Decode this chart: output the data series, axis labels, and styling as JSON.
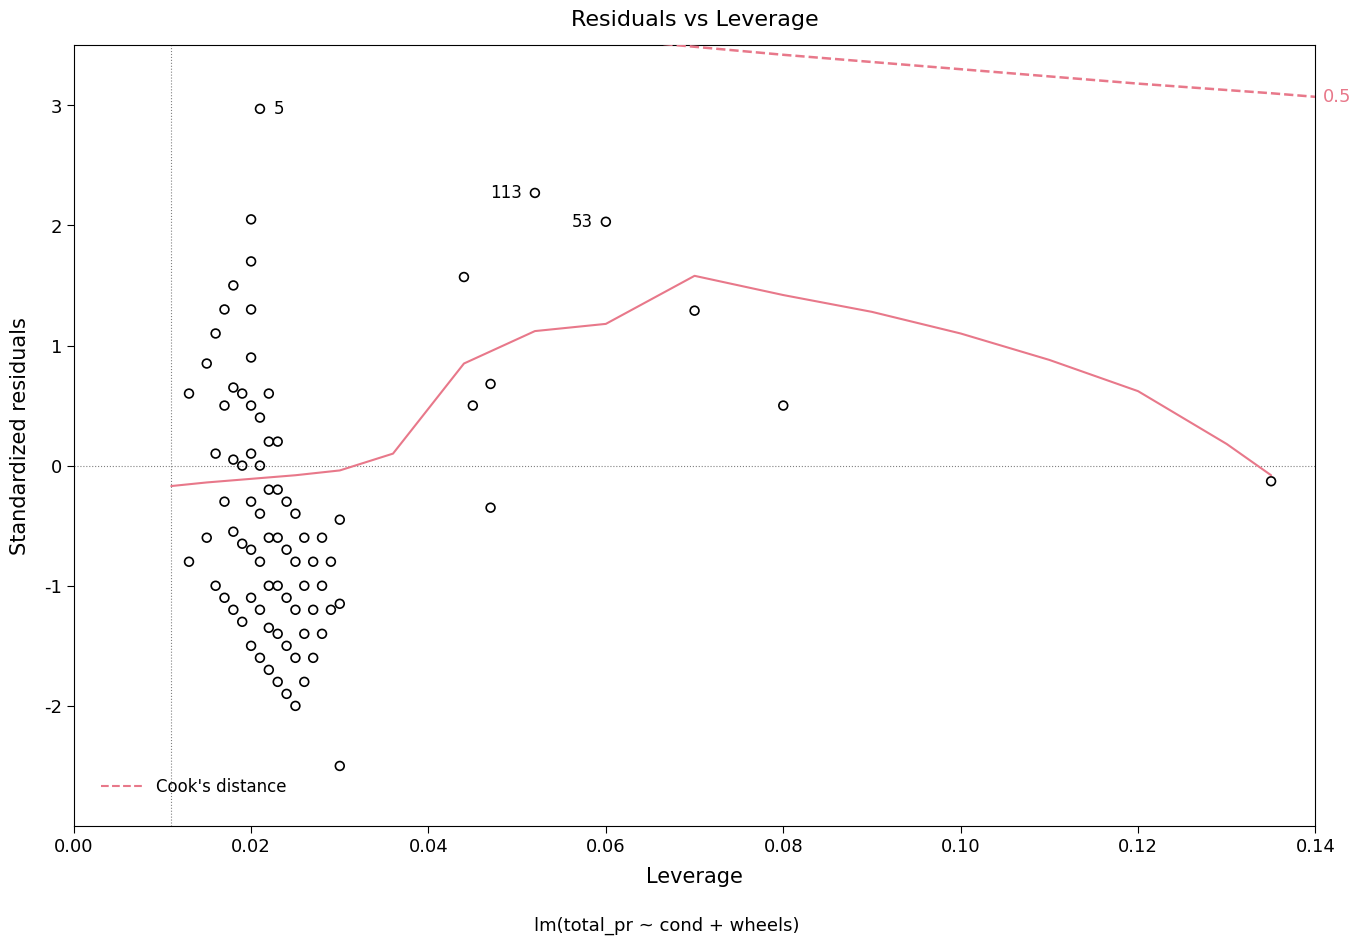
{
  "title": "Residuals vs Leverage",
  "xlabel": "Leverage",
  "ylabel": "Standardized residuals",
  "subtitle": "lm(total_pr ~ cond + wheels)",
  "xlim": [
    0.0,
    0.14
  ],
  "ylim": [
    -3.0,
    3.5
  ],
  "xticks": [
    0.0,
    0.02,
    0.04,
    0.06,
    0.08,
    0.1,
    0.12,
    0.14
  ],
  "yticks": [
    -2,
    -1,
    0,
    1,
    2,
    3
  ],
  "background_color": "#ffffff",
  "point_color": "black",
  "smoothing_line_color": "#e8788a",
  "cook_line_color": "#e8788a",
  "cook_label_color": "#e8788a",
  "cook_label": "0.5",
  "legend_label": "Cook's distance",
  "vline_x": 0.011,
  "hline_y": 0.0,
  "labeled_points": {
    "5": [
      0.021,
      2.97
    ],
    "113": [
      0.052,
      2.27
    ],
    "53": [
      0.06,
      2.03
    ]
  },
  "scatter_x": [
    0.013,
    0.013,
    0.015,
    0.015,
    0.016,
    0.016,
    0.016,
    0.017,
    0.017,
    0.017,
    0.017,
    0.018,
    0.018,
    0.018,
    0.018,
    0.018,
    0.019,
    0.019,
    0.019,
    0.019,
    0.02,
    0.02,
    0.02,
    0.02,
    0.02,
    0.02,
    0.02,
    0.02,
    0.02,
    0.02,
    0.021,
    0.021,
    0.021,
    0.021,
    0.021,
    0.021,
    0.022,
    0.022,
    0.022,
    0.022,
    0.022,
    0.022,
    0.022,
    0.023,
    0.023,
    0.023,
    0.023,
    0.023,
    0.023,
    0.024,
    0.024,
    0.024,
    0.024,
    0.024,
    0.025,
    0.025,
    0.025,
    0.025,
    0.025,
    0.026,
    0.026,
    0.026,
    0.026,
    0.027,
    0.027,
    0.027,
    0.028,
    0.028,
    0.028,
    0.029,
    0.029,
    0.03,
    0.03,
    0.03,
    0.044,
    0.045,
    0.047,
    0.047,
    0.07,
    0.08,
    0.135
  ],
  "scatter_y": [
    -0.8,
    0.6,
    -0.6,
    0.85,
    -1.0,
    0.1,
    1.1,
    -1.1,
    -0.3,
    0.5,
    1.3,
    -1.2,
    -0.55,
    0.05,
    0.65,
    1.5,
    -1.3,
    -0.65,
    0.0,
    0.6,
    -1.5,
    -1.1,
    -0.7,
    -0.3,
    0.1,
    0.5,
    0.9,
    1.3,
    1.7,
    2.05,
    -1.6,
    -1.2,
    -0.8,
    -0.4,
    0.0,
    0.4,
    -1.7,
    -1.35,
    -1.0,
    -0.6,
    -0.2,
    0.2,
    0.6,
    -1.8,
    -1.4,
    -1.0,
    -0.6,
    -0.2,
    0.2,
    -1.9,
    -1.5,
    -1.1,
    -0.7,
    -0.3,
    -2.0,
    -1.6,
    -1.2,
    -0.8,
    -0.4,
    -1.8,
    -1.4,
    -1.0,
    -0.6,
    -1.6,
    -1.2,
    -0.8,
    -1.4,
    -1.0,
    -0.6,
    -1.2,
    -0.8,
    -2.5,
    -1.15,
    -0.45,
    1.57,
    0.5,
    0.68,
    -0.35,
    1.29,
    0.5,
    -0.13
  ],
  "smooth_x": [
    0.011,
    0.015,
    0.02,
    0.025,
    0.03,
    0.036,
    0.044,
    0.052,
    0.06,
    0.07,
    0.08,
    0.09,
    0.1,
    0.11,
    0.12,
    0.13,
    0.135
  ],
  "smooth_y": [
    -0.17,
    -0.14,
    -0.11,
    -0.08,
    -0.04,
    0.1,
    0.85,
    1.12,
    1.18,
    1.58,
    1.42,
    1.28,
    1.1,
    0.88,
    0.62,
    0.18,
    -0.08
  ],
  "cook_upper_x": [
    0.065,
    0.08,
    0.1,
    0.12,
    0.135,
    0.14
  ],
  "cook_upper_y": [
    3.52,
    3.42,
    3.3,
    3.18,
    3.1,
    3.07
  ]
}
